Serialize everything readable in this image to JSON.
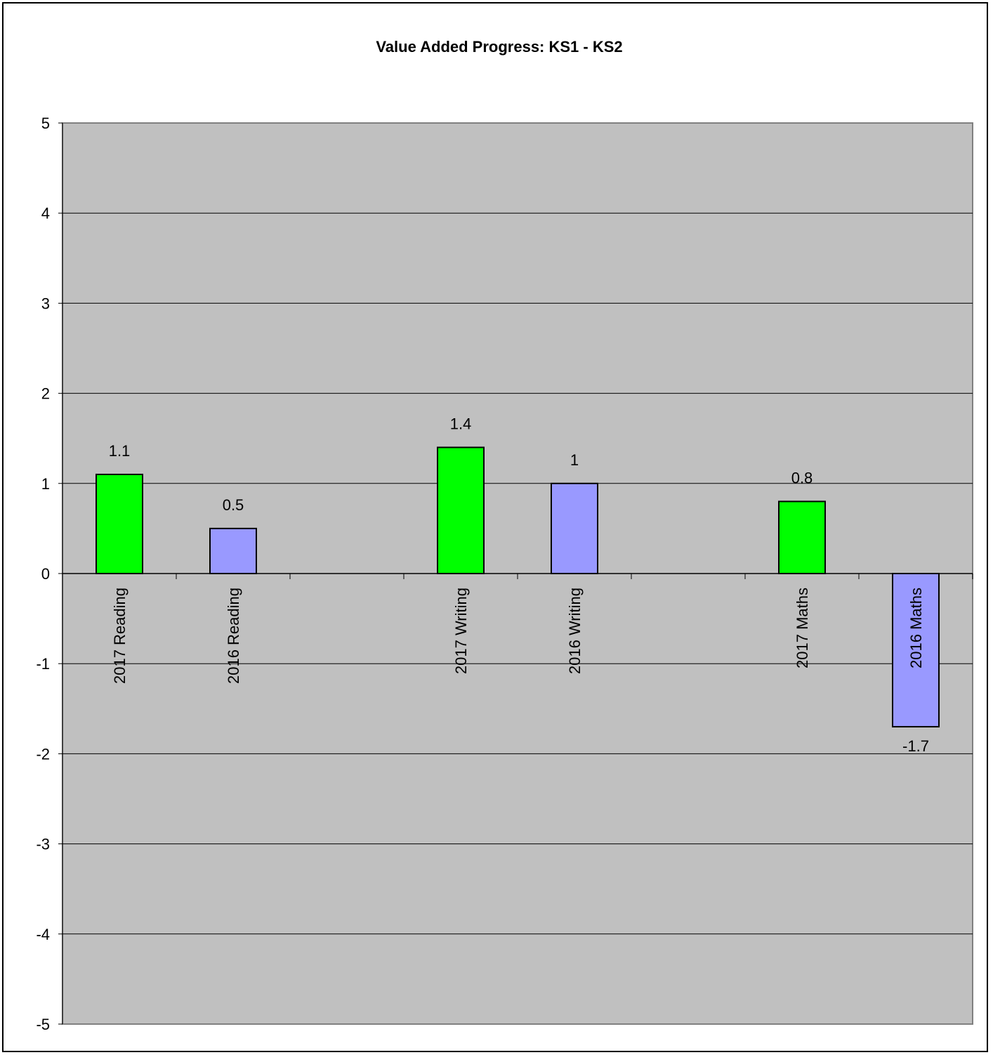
{
  "chart_data": {
    "type": "bar",
    "title": "Value Added Progress: KS1 - KS2",
    "xlabel": "",
    "ylabel": "",
    "ylim": [
      -5,
      5
    ],
    "yticks": [
      5,
      4,
      3,
      2,
      1,
      0,
      -1,
      -2,
      -3,
      -4,
      -5
    ],
    "grid": true,
    "legend": "none",
    "plot_background": "#c0c0c0",
    "categories": [
      "2017 Reading",
      "2016 Reading",
      "2017 Writing",
      "2016 Writing",
      "2017 Maths",
      "2016 Maths"
    ],
    "slots": [
      0,
      1,
      3,
      4,
      6,
      7
    ],
    "slot_count": 8,
    "values": [
      1.1,
      0.5,
      1.4,
      1,
      0.8,
      -1.7
    ],
    "value_labels": [
      "1.1",
      "0.5",
      "1.4",
      "1",
      "0.8",
      "-1.7"
    ],
    "colors": [
      "#00ff00",
      "#9999ff",
      "#00ff00",
      "#9999ff",
      "#00ff00",
      "#9999ff"
    ]
  }
}
